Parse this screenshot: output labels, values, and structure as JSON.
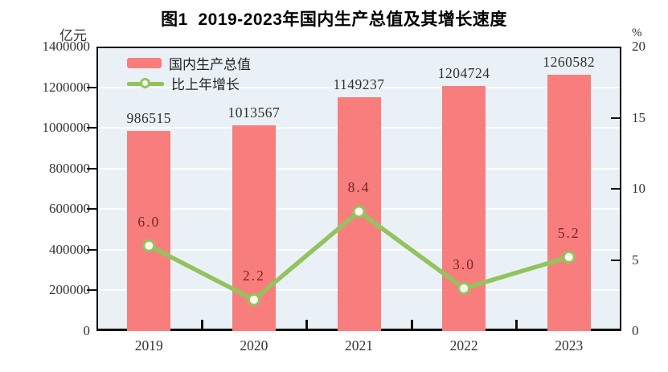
{
  "title": "图1  2019-2023年国内生产总值及其增长速度",
  "left_axis": {
    "unit": "亿元",
    "min": 0,
    "max": 1400000,
    "ticks": [
      "0",
      "200000",
      "400000",
      "600000",
      "800000",
      "1000000",
      "1200000",
      "1400000"
    ]
  },
  "right_axis": {
    "unit": "%",
    "min": 0,
    "max": 20,
    "ticks": [
      "0",
      "5",
      "10",
      "15",
      "20"
    ]
  },
  "legend": {
    "items": [
      {
        "label": "国内生产总值",
        "type": "bar"
      },
      {
        "label": "比上年增长",
        "type": "line"
      }
    ]
  },
  "chart_data": {
    "type": "bar+line",
    "title": "图1 2019-2023年国内生产总值及其增长速度",
    "categories": [
      "2019",
      "2020",
      "2021",
      "2022",
      "2023"
    ],
    "series": [
      {
        "name": "国内生产总值",
        "type": "bar",
        "axis": "left",
        "unit": "亿元",
        "values": [
          986515,
          1013567,
          1149237,
          1204724,
          1260582
        ],
        "labels": [
          "986515",
          "1013567",
          "1149237",
          "1204724",
          "1260582"
        ],
        "color": "#f87e7e"
      },
      {
        "name": "比上年增长",
        "type": "line",
        "axis": "right",
        "unit": "%",
        "values": [
          6.0,
          2.2,
          8.4,
          3.0,
          5.2
        ],
        "labels": [
          "6.0",
          "2.2",
          "8.4",
          "3.0",
          "5.2"
        ],
        "color": "#93c35e"
      }
    ],
    "left_ylim": [
      0,
      1400000
    ],
    "right_ylim": [
      0,
      20
    ],
    "grid": true,
    "legend_position": "top-left-inside"
  },
  "colors": {
    "bar": "#f87e7e",
    "line": "#93c35e",
    "marker_fill": "#fffef2",
    "plot_bg": "#eaf1f6",
    "gridline": "#ffffff",
    "axis": "#111111",
    "value_label": "#303030",
    "rate_label": "#7d2123",
    "tick_label": "#333333"
  }
}
